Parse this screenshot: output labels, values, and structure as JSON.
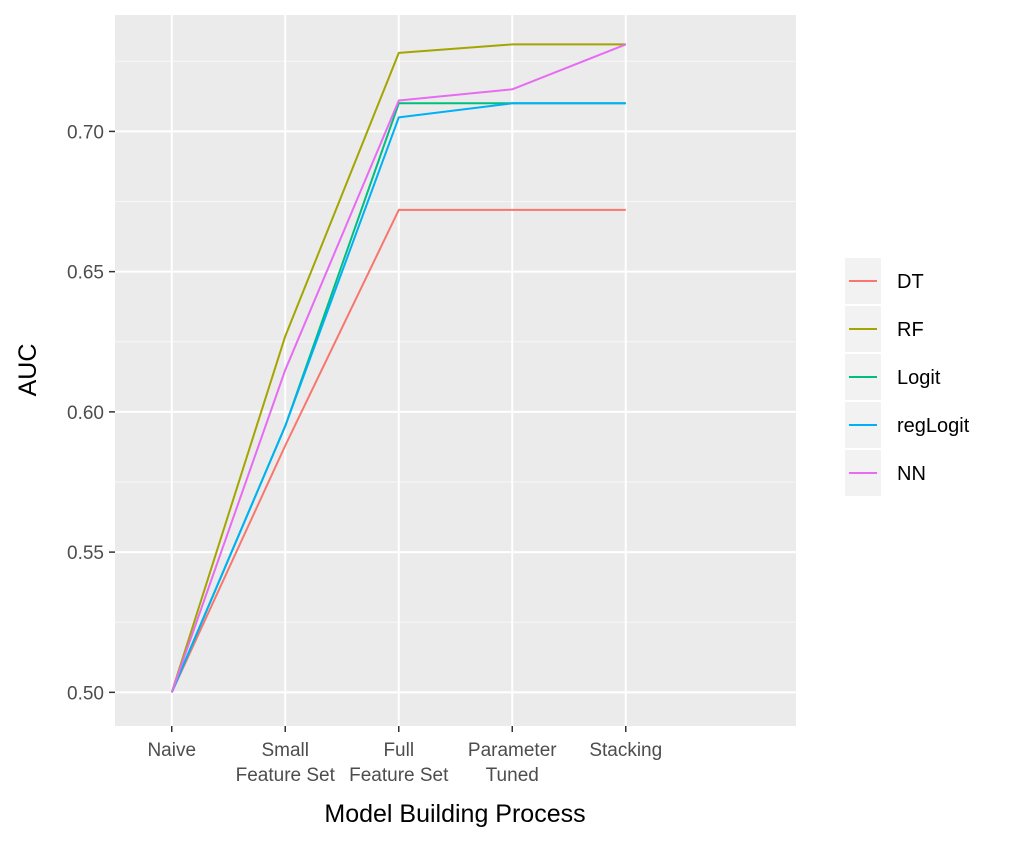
{
  "chart_data": {
    "type": "line",
    "title": "",
    "xlabel": "Model Building Process",
    "ylabel": "AUC",
    "categories": [
      [
        "Naive"
      ],
      [
        "Small",
        "Feature Set"
      ],
      [
        "Full",
        "Feature Set"
      ],
      [
        "Parameter",
        "Tuned"
      ],
      [
        "Stacking"
      ]
    ],
    "yticks": [
      "0.50",
      "0.55",
      "0.60",
      "0.65",
      "0.70"
    ],
    "ylim": [
      0.488,
      0.7415
    ],
    "grid": true,
    "legend_position": "right",
    "series": [
      {
        "name": "DT",
        "color": "#F8766D",
        "values": [
          0.5,
          0.588,
          0.672,
          0.672,
          0.672
        ]
      },
      {
        "name": "RF",
        "color": "#A3A500",
        "values": [
          0.5,
          0.627,
          0.728,
          0.731,
          0.731
        ]
      },
      {
        "name": "Logit",
        "color": "#00BF7D",
        "values": [
          0.5,
          0.595,
          0.71,
          0.71,
          0.71
        ]
      },
      {
        "name": "regLogit",
        "color": "#00B0F6",
        "values": [
          0.5,
          0.595,
          0.705,
          0.71,
          0.71
        ]
      },
      {
        "name": "NN",
        "color": "#E76BF3",
        "values": [
          0.5,
          0.615,
          0.711,
          0.715,
          0.731
        ]
      }
    ]
  }
}
